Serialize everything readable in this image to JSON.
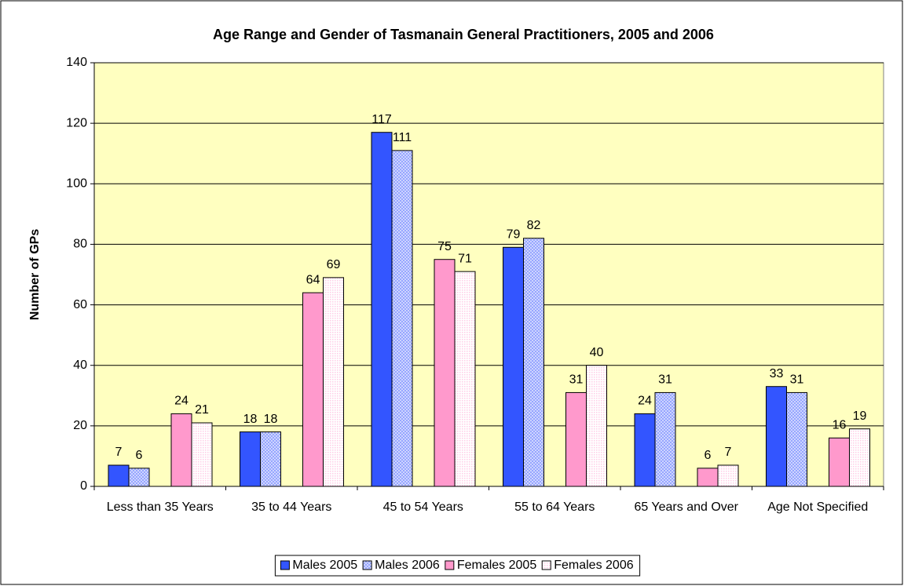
{
  "chart_data": {
    "type": "bar",
    "title": "Age Range and Gender of Tasmanain General Practitioners, 2005 and 2006",
    "y_label": "Number of GPs",
    "categories": [
      "Less than 35 Years",
      "35 to 44 Years",
      "45 to 54 Years",
      "55 to 64 Years",
      "65 Years and Over",
      "Age Not Specified"
    ],
    "series": [
      {
        "name": "Males 2005",
        "color": "#3355ff",
        "pattern": "solid",
        "values": [
          7,
          18,
          117,
          79,
          24,
          33
        ]
      },
      {
        "name": "Males 2006",
        "color": "#8899ff",
        "pattern": "hatch",
        "values": [
          6,
          18,
          111,
          82,
          31,
          31
        ]
      },
      {
        "name": "Females 2005",
        "color": "#ff99cc",
        "pattern": "solid",
        "values": [
          24,
          64,
          75,
          31,
          6,
          16
        ]
      },
      {
        "name": "Females 2006",
        "color": "#ffcce6",
        "pattern": "dots",
        "values": [
          21,
          69,
          71,
          40,
          7,
          19
        ]
      }
    ],
    "ylim": [
      0,
      140
    ],
    "yticks": [
      0,
      20,
      40,
      60,
      80,
      100,
      120,
      140
    ],
    "grid": true,
    "legend": "bottom",
    "plot_background": "#ffffc0"
  }
}
